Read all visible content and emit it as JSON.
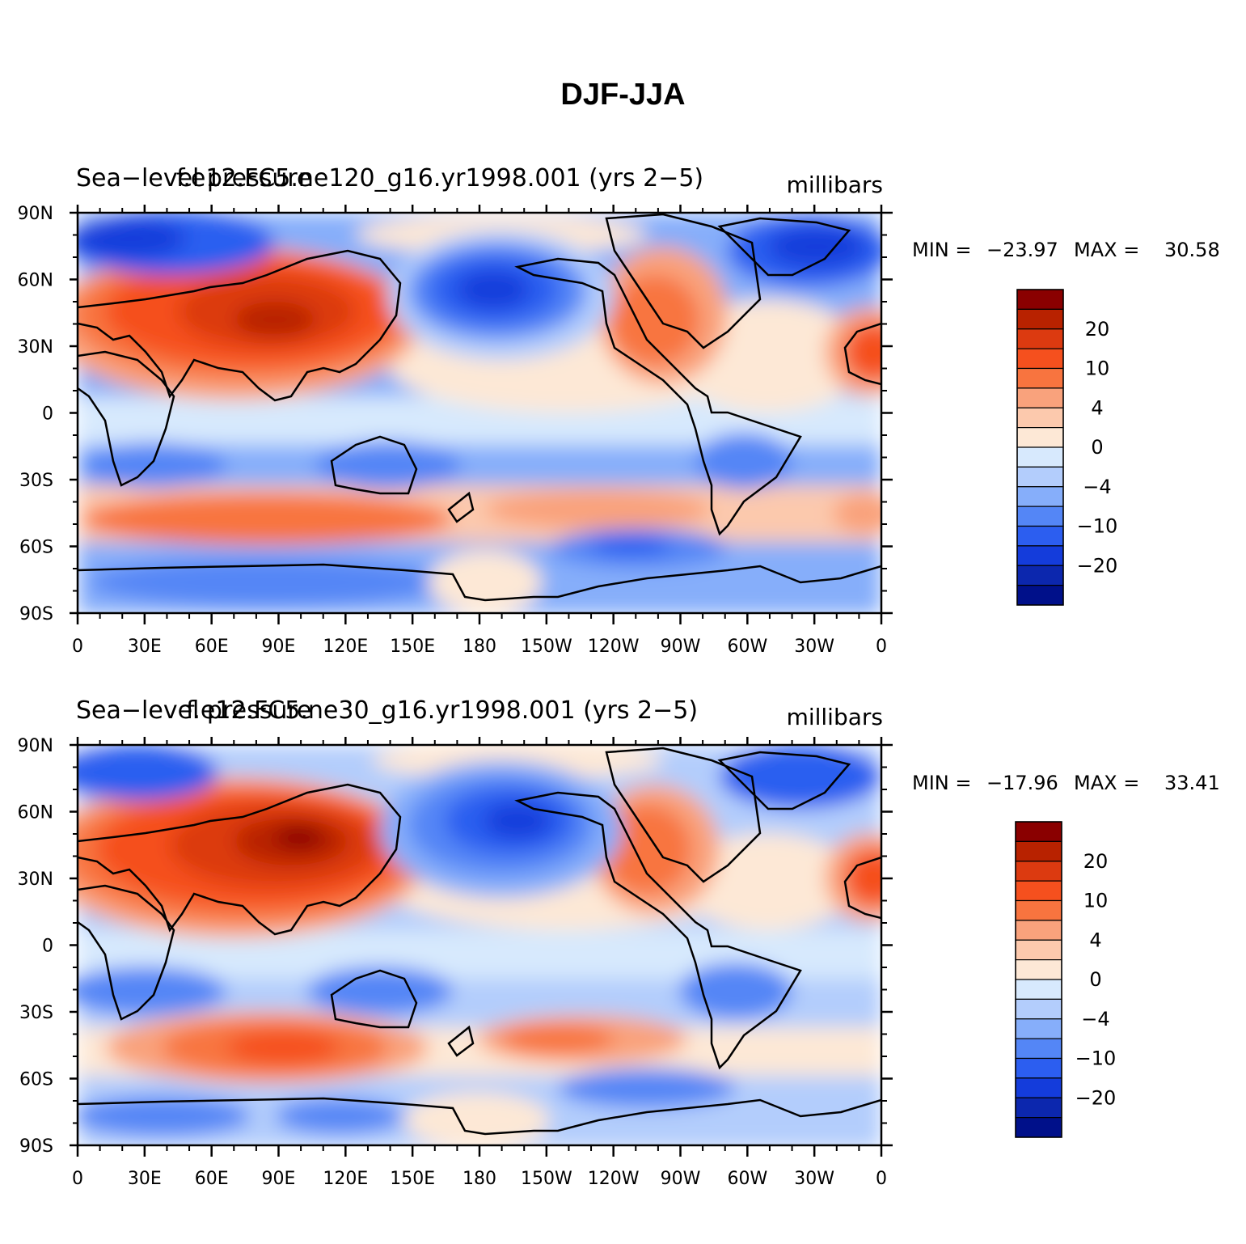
{
  "title": "DJF-JJA",
  "panels": [
    {
      "variable": "Sea−level pressure",
      "case": "f.e12.FC5.ne120_g16.yr1998.001 (yrs 2−5)",
      "units": "millibars",
      "min_label": "MIN =",
      "min_value": "−23.97",
      "max_label": "MAX =",
      "max_value": "30.58"
    },
    {
      "variable": "Sea−level pressure",
      "case": "f.e12.FC5.ne30_g16.yr1998.001 (yrs 2−5)",
      "units": "millibars",
      "min_label": "MIN =",
      "min_value": "−17.96",
      "max_label": "MAX =",
      "max_value": "33.41"
    }
  ],
  "lat_ticks": [
    "90N",
    "60N",
    "30N",
    "0",
    "30S",
    "60S",
    "90S"
  ],
  "lon_ticks": [
    "0",
    "30E",
    "60E",
    "90E",
    "120E",
    "150E",
    "180",
    "150W",
    "120W",
    "90W",
    "60W",
    "30W",
    "0"
  ],
  "colorbar": {
    "labels": [
      "20",
      "10",
      "4",
      "0",
      "−4",
      "−10",
      "−20"
    ],
    "colors": [
      "#8a0000",
      "#b82200",
      "#dc3a10",
      "#f5501e",
      "#f8743f",
      "#f9a27c",
      "#fcc9ad",
      "#fde8d6",
      "#d7e9fd",
      "#b3cdfc",
      "#86aefa",
      "#5486f6",
      "#2c5ef0",
      "#143cdb",
      "#0c27ae",
      "#00108a"
    ]
  },
  "map_colors": {
    "neg_strong": "#143cdb",
    "neg_mid": "#2c5ef0",
    "neg_weak": "#5486f6",
    "neg_light": "#86aefa",
    "neg_pale": "#b3cdfc",
    "neg_faint": "#d7e9fd",
    "pos_faint": "#fde8d6",
    "pos_pale": "#fcc9ad",
    "pos_light": "#f9a27c",
    "pos_weak": "#f8743f",
    "pos_mid": "#f5501e",
    "pos_strong": "#dc3a10",
    "pos_deep": "#b82200",
    "pos_max": "#8a0000"
  }
}
